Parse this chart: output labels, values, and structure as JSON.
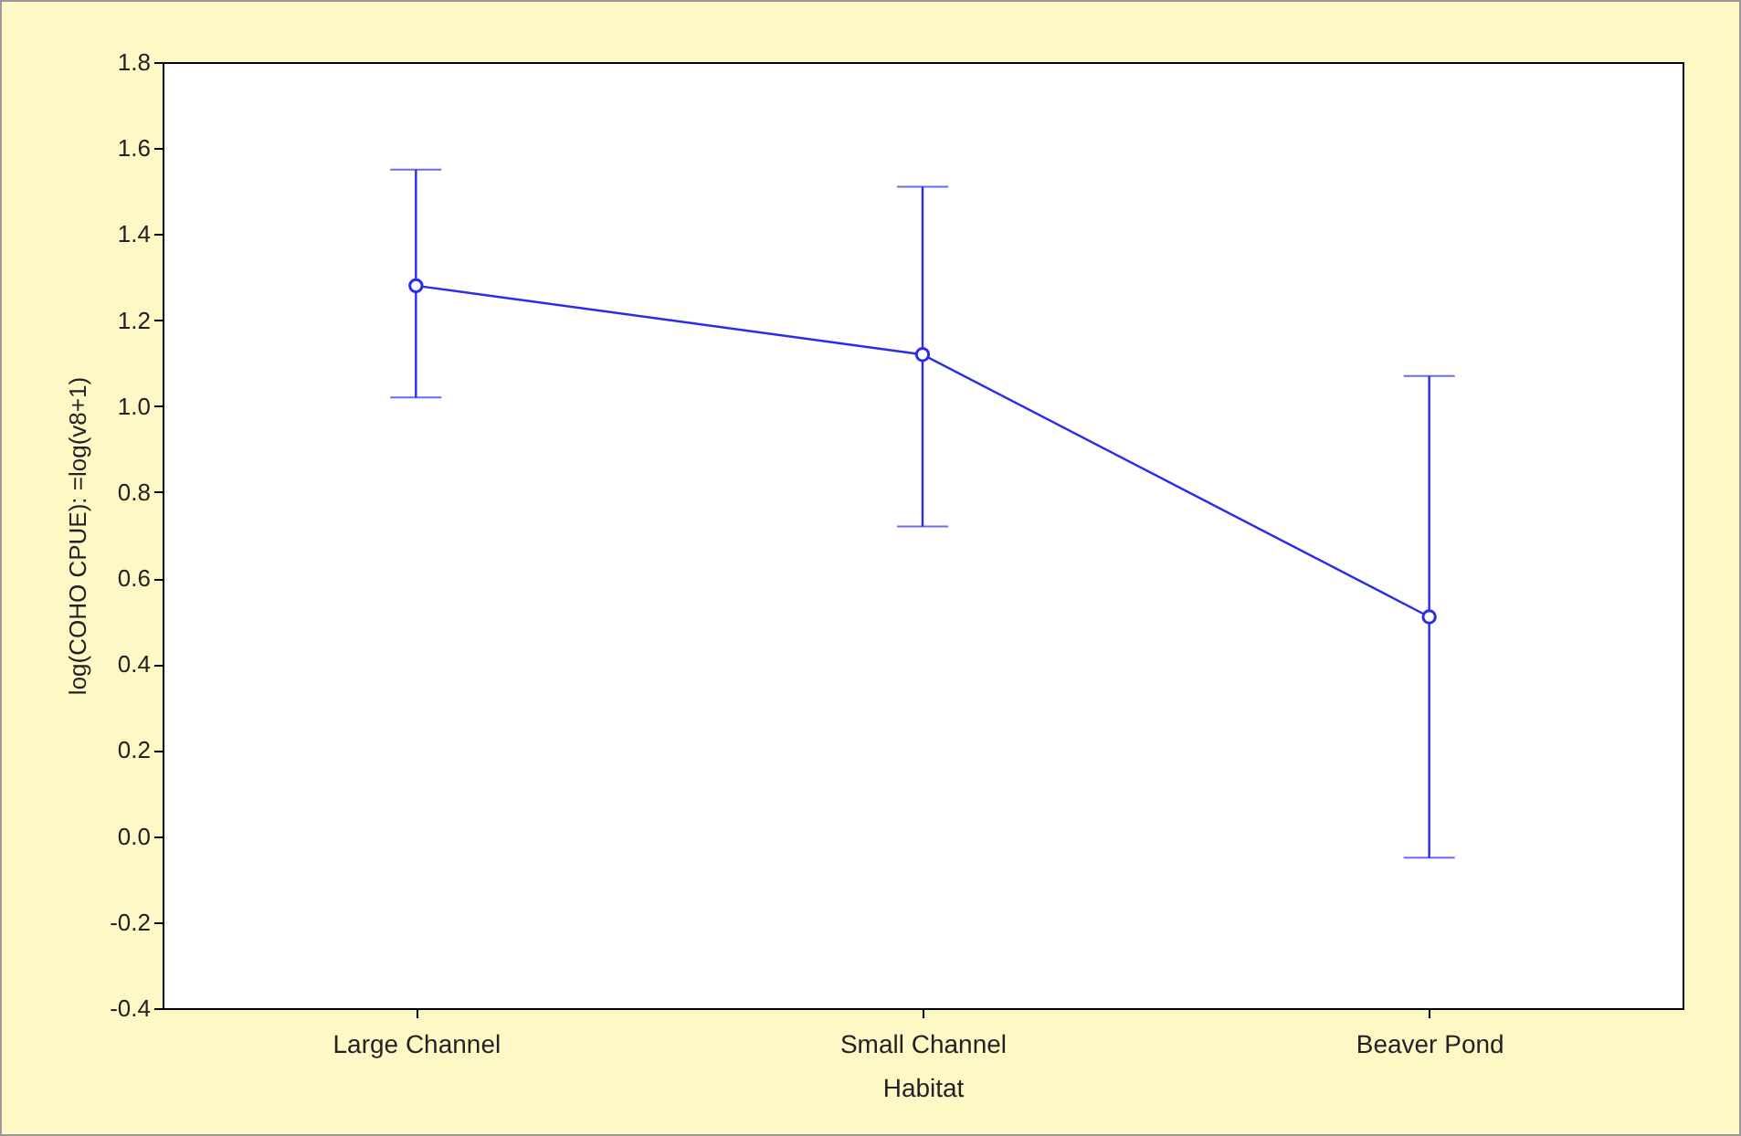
{
  "chart_data": {
    "type": "line",
    "xlabel": "Habitat",
    "ylabel": "log(COHO CPUE): =log(v8+1)",
    "categories": [
      "Large Channel",
      "Small Channel",
      "Beaver Pond"
    ],
    "series": [
      {
        "color": "#2b2bf0",
        "values": [
          1.28,
          1.12,
          0.51
        ],
        "errors": [
          [
            1.02,
            1.55
          ],
          [
            0.72,
            1.51
          ],
          [
            -0.05,
            1.07
          ]
        ]
      }
    ],
    "ylim": [
      -0.4,
      1.8
    ],
    "yticks": [
      {
        "value": -0.4,
        "label": "-0.4"
      },
      {
        "value": -0.2,
        "label": "-0.2"
      },
      {
        "value": 0,
        "label": "0.0"
      },
      {
        "value": 0.2,
        "label": "0.2"
      },
      {
        "value": 0.4,
        "label": "0.4"
      },
      {
        "value": 0.6,
        "label": "0.6"
      },
      {
        "value": 0.8,
        "label": "0.8"
      },
      {
        "value": 1,
        "label": "1.0"
      },
      {
        "value": 1.2,
        "label": "1.2"
      },
      {
        "value": 1.4,
        "label": "1.4"
      },
      {
        "value": 1.6,
        "label": "1.6"
      },
      {
        "value": 1.8,
        "label": "1.8"
      }
    ],
    "marker": "circle",
    "grid": false
  }
}
